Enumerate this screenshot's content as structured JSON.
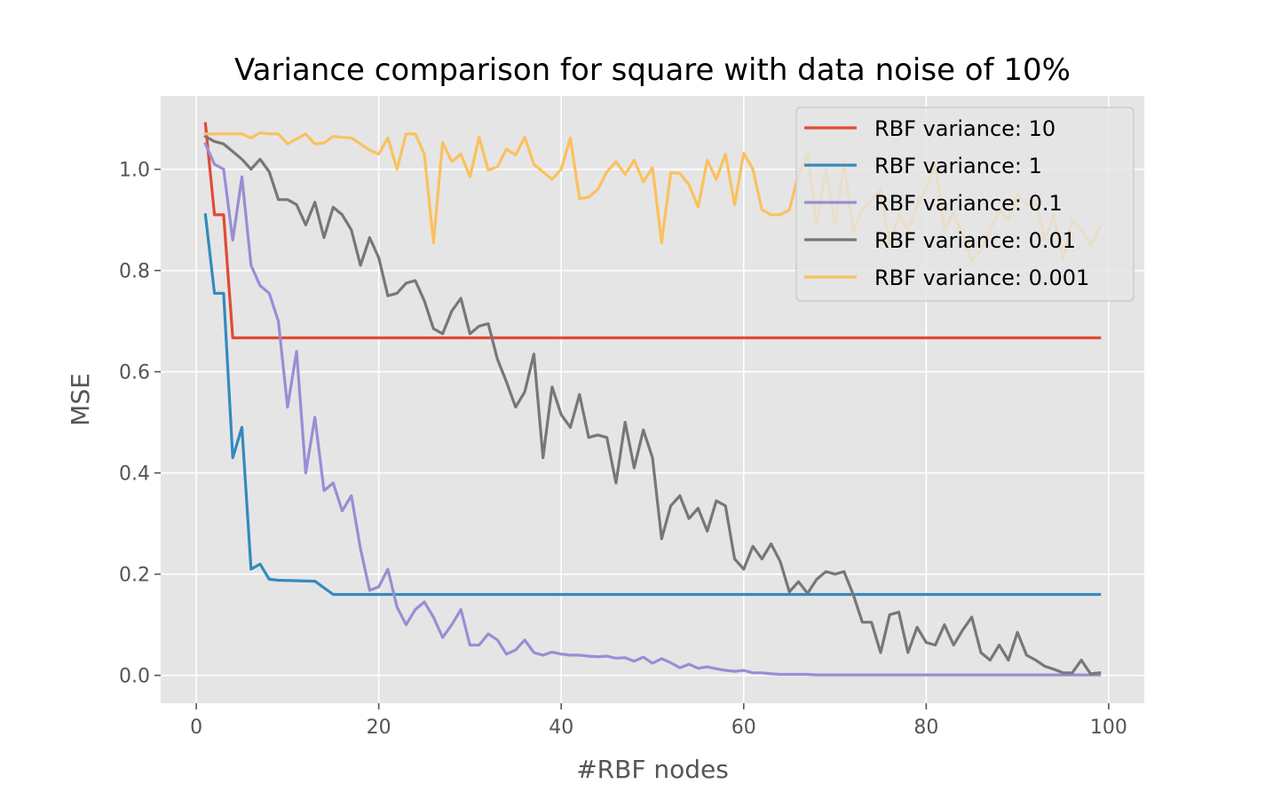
{
  "chart_data": {
    "type": "line",
    "title": "Variance comparison for square with data noise of 10%",
    "xlabel": "#RBF nodes",
    "ylabel": "MSE",
    "xlim": [
      -3.9,
      103.9
    ],
    "ylim": [
      -0.055,
      1.145
    ],
    "xticks": [
      0,
      20,
      40,
      60,
      80,
      100
    ],
    "yticks": [
      0.0,
      0.2,
      0.4,
      0.6,
      0.8,
      1.0
    ],
    "xtick_labels": [
      "0",
      "20",
      "40",
      "60",
      "80",
      "100"
    ],
    "ytick_labels": [
      "0.0",
      "0.2",
      "0.4",
      "0.6",
      "0.8",
      "1.0"
    ],
    "grid": true,
    "legend_position": "top-right",
    "series": [
      {
        "name": "RBF variance: 10",
        "color": "#E24A33",
        "x": [
          1,
          2,
          3,
          4,
          5,
          99
        ],
        "y": [
          1.09,
          0.91,
          0.91,
          0.667,
          0.667,
          0.667
        ]
      },
      {
        "name": "RBF variance: 1",
        "color": "#348ABD",
        "x": [
          1,
          2,
          3,
          4,
          5,
          6,
          7,
          8,
          9,
          13,
          15,
          99
        ],
        "y": [
          0.91,
          0.755,
          0.755,
          0.43,
          0.49,
          0.21,
          0.22,
          0.19,
          0.188,
          0.186,
          0.16,
          0.16
        ]
      },
      {
        "name": "RBF variance: 0.1",
        "color": "#988ED5",
        "x": [
          1,
          2,
          3,
          4,
          5,
          6,
          7,
          8,
          9,
          10,
          11,
          12,
          13,
          14,
          15,
          16,
          17,
          18,
          19,
          20,
          21,
          22,
          23,
          24,
          25,
          26,
          27,
          28,
          29,
          30,
          31,
          32,
          33,
          34,
          35,
          36,
          37,
          38,
          39,
          40,
          41,
          42,
          43,
          44,
          45,
          46,
          47,
          48,
          49,
          50,
          51,
          52,
          53,
          54,
          55,
          56,
          57,
          58,
          59,
          60,
          61,
          62,
          63,
          64,
          65,
          66,
          67,
          68,
          69,
          70,
          71,
          72,
          73,
          74,
          75,
          76,
          77,
          78,
          79,
          80,
          81,
          82,
          83,
          84,
          85,
          86,
          87,
          88,
          89,
          90,
          91,
          92,
          93,
          94,
          95,
          96,
          97,
          98,
          99
        ],
        "y": [
          1.05,
          1.01,
          1.0,
          0.86,
          0.985,
          0.81,
          0.77,
          0.755,
          0.7,
          0.53,
          0.64,
          0.4,
          0.51,
          0.365,
          0.38,
          0.325,
          0.355,
          0.25,
          0.168,
          0.175,
          0.21,
          0.135,
          0.1,
          0.13,
          0.145,
          0.115,
          0.075,
          0.1,
          0.13,
          0.06,
          0.06,
          0.082,
          0.07,
          0.042,
          0.05,
          0.07,
          0.045,
          0.04,
          0.046,
          0.042,
          0.04,
          0.04,
          0.038,
          0.037,
          0.038,
          0.034,
          0.035,
          0.028,
          0.036,
          0.024,
          0.033,
          0.025,
          0.015,
          0.022,
          0.014,
          0.017,
          0.013,
          0.01,
          0.008,
          0.01,
          0.005,
          0.005,
          0.003,
          0.002,
          0.002,
          0.002,
          0.002,
          0.001,
          0.001,
          0.001,
          0.001,
          0.001,
          0.001,
          0.001,
          0.001,
          0.001,
          0.001,
          0.001,
          0.001,
          0.001,
          0.001,
          0.001,
          0.001,
          0.001,
          0.001,
          0.001,
          0.001,
          0.001,
          0.001,
          0.001,
          0.001,
          0.001,
          0.001,
          0.001,
          0.001,
          0.001,
          0.001,
          0.001,
          0.001
        ]
      },
      {
        "name": "RBF variance: 0.01",
        "color": "#777777",
        "x": [
          1,
          2,
          3,
          4,
          5,
          6,
          7,
          8,
          9,
          10,
          11,
          12,
          13,
          14,
          15,
          16,
          17,
          18,
          19,
          20,
          21,
          22,
          23,
          24,
          25,
          26,
          27,
          28,
          29,
          30,
          31,
          32,
          33,
          34,
          35,
          36,
          37,
          38,
          39,
          40,
          41,
          42,
          43,
          44,
          45,
          46,
          47,
          48,
          49,
          50,
          51,
          52,
          53,
          54,
          55,
          56,
          57,
          58,
          59,
          60,
          61,
          62,
          63,
          64,
          65,
          66,
          67,
          68,
          69,
          70,
          71,
          72,
          73,
          74,
          75,
          76,
          77,
          78,
          79,
          80,
          81,
          82,
          83,
          84,
          85,
          86,
          87,
          88,
          89,
          90,
          91,
          92,
          93,
          94,
          95,
          96,
          97,
          98,
          99
        ],
        "y": [
          1.065,
          1.055,
          1.05,
          1.035,
          1.02,
          1.0,
          1.02,
          0.995,
          0.94,
          0.94,
          0.93,
          0.89,
          0.935,
          0.865,
          0.925,
          0.91,
          0.88,
          0.81,
          0.865,
          0.825,
          0.75,
          0.755,
          0.775,
          0.78,
          0.74,
          0.685,
          0.675,
          0.72,
          0.745,
          0.675,
          0.69,
          0.695,
          0.625,
          0.58,
          0.53,
          0.56,
          0.635,
          0.43,
          0.57,
          0.515,
          0.49,
          0.555,
          0.47,
          0.475,
          0.47,
          0.38,
          0.5,
          0.41,
          0.485,
          0.43,
          0.27,
          0.335,
          0.355,
          0.31,
          0.33,
          0.285,
          0.345,
          0.335,
          0.23,
          0.21,
          0.255,
          0.23,
          0.26,
          0.225,
          0.165,
          0.185,
          0.162,
          0.19,
          0.205,
          0.2,
          0.205,
          0.16,
          0.105,
          0.105,
          0.045,
          0.12,
          0.125,
          0.045,
          0.095,
          0.065,
          0.06,
          0.1,
          0.06,
          0.09,
          0.115,
          0.045,
          0.03,
          0.06,
          0.03,
          0.085,
          0.04,
          0.03,
          0.018,
          0.012,
          0.005,
          0.005,
          0.03,
          0.003,
          0.005
        ]
      },
      {
        "name": "RBF variance: 0.001",
        "color": "#FBC15E",
        "x": [
          1,
          2,
          3,
          4,
          5,
          6,
          7,
          8,
          9,
          10,
          11,
          12,
          13,
          14,
          15,
          16,
          17,
          18,
          19,
          20,
          21,
          22,
          23,
          24,
          25,
          26,
          27,
          28,
          29,
          30,
          31,
          32,
          33,
          34,
          35,
          36,
          37,
          38,
          39,
          40,
          41,
          42,
          43,
          44,
          45,
          46,
          47,
          48,
          49,
          50,
          51,
          52,
          53,
          54,
          55,
          56,
          57,
          58,
          59,
          60,
          61,
          62,
          63,
          64,
          65,
          66,
          67,
          68,
          69,
          70,
          71,
          72,
          73,
          74,
          75,
          76,
          77,
          78,
          79,
          80,
          81,
          82,
          83,
          84,
          85,
          86,
          87,
          88,
          89,
          90,
          91,
          92,
          93,
          94,
          95,
          96,
          97,
          98,
          99
        ],
        "y": [
          1.07,
          1.07,
          1.07,
          1.07,
          1.07,
          1.062,
          1.072,
          1.07,
          1.07,
          1.05,
          1.06,
          1.07,
          1.05,
          1.052,
          1.065,
          1.063,
          1.062,
          1.05,
          1.038,
          1.03,
          1.062,
          1.0,
          1.07,
          1.07,
          1.03,
          0.855,
          1.053,
          1.015,
          1.03,
          0.985,
          1.063,
          0.998,
          1.005,
          1.04,
          1.028,
          1.063,
          1.01,
          0.995,
          0.98,
          1.0,
          1.062,
          0.942,
          0.945,
          0.96,
          0.995,
          1.015,
          0.99,
          1.018,
          0.975,
          1.003,
          0.855,
          0.993,
          0.992,
          0.97,
          0.925,
          1.018,
          0.98,
          1.03,
          0.93,
          1.032,
          1.0,
          0.92,
          0.91,
          0.91,
          0.92,
          0.99,
          1.03,
          0.89,
          1.0,
          0.89,
          1.015,
          0.875,
          0.92,
          0.94,
          0.96,
          0.85,
          0.91,
          0.88,
          0.93,
          0.96,
          1.01,
          0.88,
          0.915,
          0.87,
          0.82,
          0.84,
          0.88,
          0.92,
          0.9,
          0.95,
          0.93,
          0.94,
          0.86,
          0.91,
          0.82,
          0.9,
          0.88,
          0.85,
          0.885
        ]
      }
    ]
  }
}
